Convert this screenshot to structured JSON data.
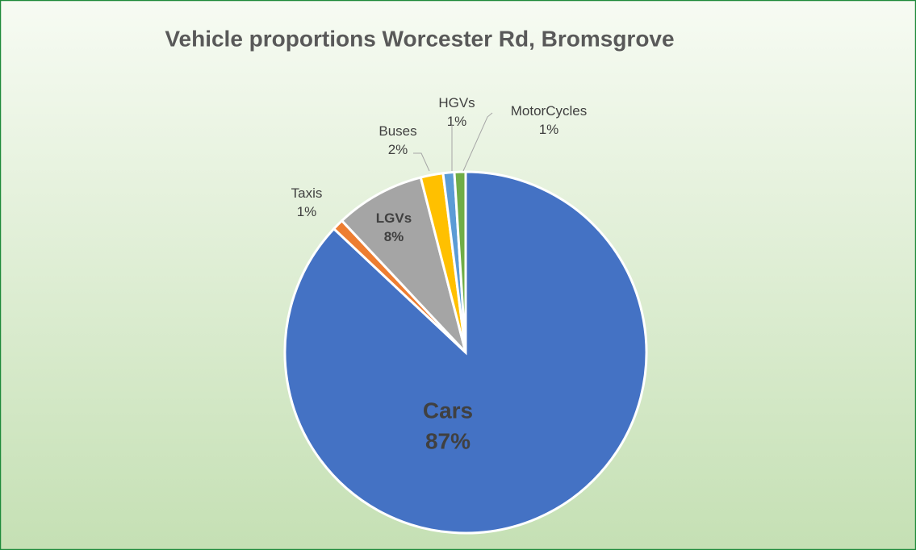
{
  "chart_data": {
    "type": "pie",
    "title": "Vehicle proportions Worcester Rd, Bromsgrove",
    "categories": [
      "Cars",
      "Taxis",
      "LGVs",
      "Buses",
      "HGVs",
      "MotorCycles"
    ],
    "values": [
      87,
      1,
      8,
      2,
      1,
      1
    ],
    "value_labels": [
      "87%",
      "1%",
      "8%",
      "2%",
      "1%",
      "1%"
    ],
    "colors": [
      "#4472c4",
      "#ed7d31",
      "#a5a5a5",
      "#ffc000",
      "#5b9bd5",
      "#70ad47"
    ]
  }
}
